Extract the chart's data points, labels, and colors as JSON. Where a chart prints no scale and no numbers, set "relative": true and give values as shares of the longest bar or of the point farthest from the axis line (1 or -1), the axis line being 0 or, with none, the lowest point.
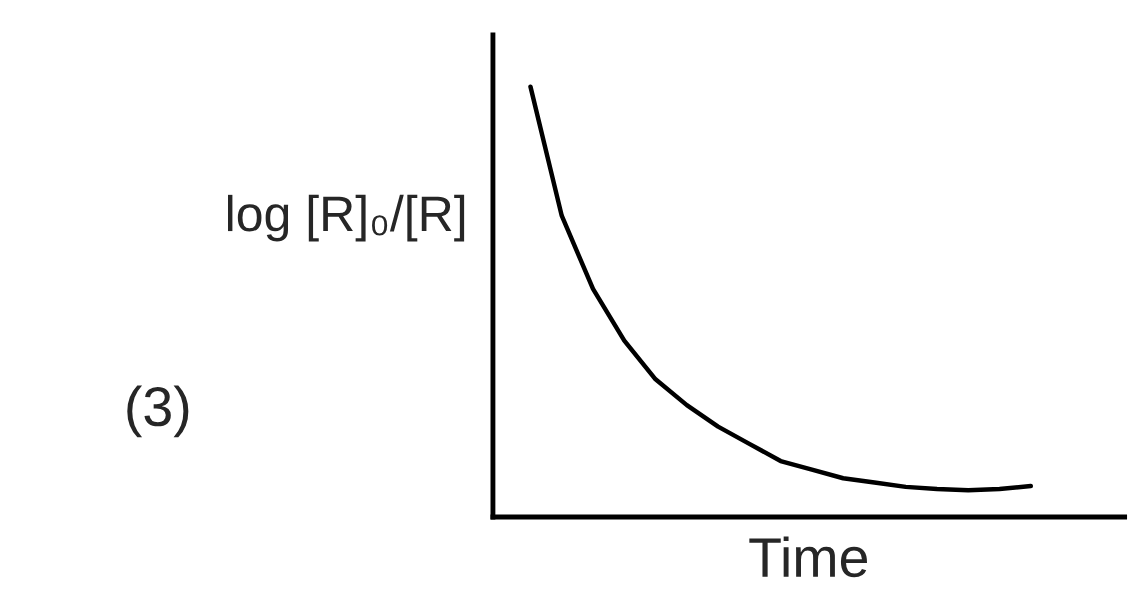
{
  "chart_data": {
    "type": "line",
    "relative": true,
    "xlabel": "Time",
    "ylabel": "log [R]₀/[R]",
    "annotations": [
      "(3)"
    ],
    "categories": [
      null,
      null,
      null,
      null,
      null,
      null,
      null,
      null,
      null,
      null,
      null,
      null,
      null,
      null,
      null,
      null,
      null
    ],
    "series": [
      {
        "color": "#000000",
        "values": [
          1.0,
          0.7,
          0.53,
          0.41,
          0.32,
          0.26,
          0.21,
          0.17,
          0.13,
          0.11,
          0.09,
          0.08,
          0.07,
          0.065,
          0.062,
          0.065,
          0.072
        ]
      }
    ],
    "marker": "none",
    "line_style": "solid"
  }
}
